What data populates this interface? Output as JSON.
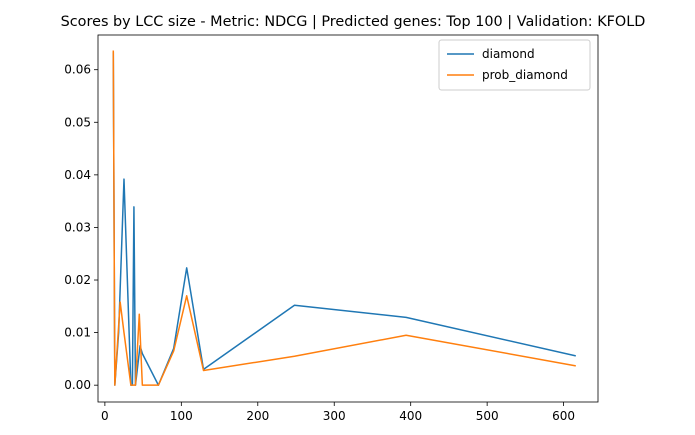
{
  "chart_data": {
    "type": "line",
    "title": "Scores by LCC size - Metric: NDCG | Predicted genes: Top 100 | Validation: KFOLD",
    "xlabel": "",
    "ylabel": "",
    "xlim": [
      -9,
      645
    ],
    "ylim": [
      -0.0032,
      0.0666
    ],
    "xticks": [
      0,
      100,
      200,
      300,
      400,
      500,
      600
    ],
    "yticks": [
      0.0,
      0.01,
      0.02,
      0.03,
      0.04,
      0.05,
      0.06
    ],
    "xtick_labels": [
      "0",
      "100",
      "200",
      "300",
      "400",
      "500",
      "600"
    ],
    "ytick_labels": [
      "0.00",
      "0.01",
      "0.02",
      "0.03",
      "0.04",
      "0.05",
      "0.06"
    ],
    "grid": false,
    "legend_position": "top-right",
    "series": [
      {
        "name": "diamond",
        "color": "#1f77b4",
        "x": [
          11,
          13,
          18,
          25,
          34,
          36,
          38,
          40,
          46,
          49,
          70,
          90,
          107,
          129,
          248,
          394,
          615
        ],
        "y": [
          0.0632,
          0.0,
          0.01,
          0.0392,
          0.0,
          0.0,
          0.0339,
          0.0,
          0.0075,
          0.006,
          0.0,
          0.007,
          0.0223,
          0.003,
          0.0152,
          0.0129,
          0.0056
        ]
      },
      {
        "name": "prob_diamond",
        "color": "#ff7f0e",
        "x": [
          11,
          13,
          20,
          25,
          34,
          36,
          38,
          40,
          45,
          49,
          70,
          90,
          107,
          129,
          248,
          394,
          615
        ],
        "y": [
          0.0635,
          0.0,
          0.0158,
          0.01,
          0.0,
          0.0,
          0.0,
          0.0,
          0.0135,
          0.0,
          0.0,
          0.0065,
          0.017,
          0.0028,
          0.0055,
          0.0095,
          0.0037
        ]
      }
    ]
  }
}
